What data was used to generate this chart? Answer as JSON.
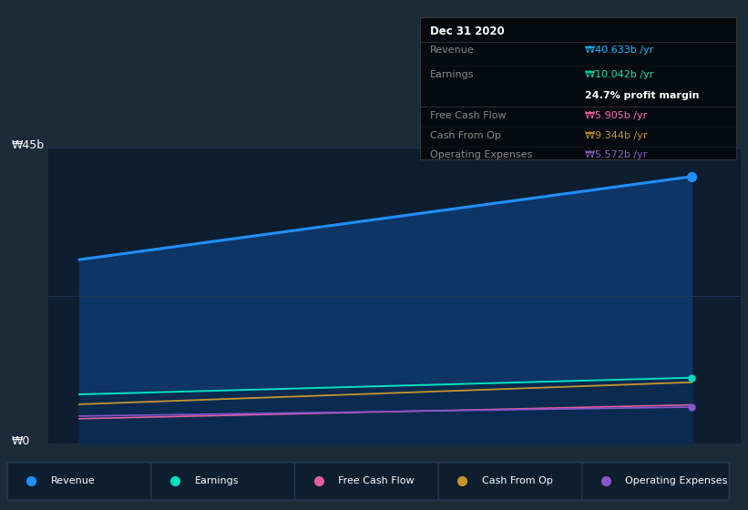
{
  "background_color": "#1c2b3a",
  "chart_bg_color": "#0d1e30",
  "y_label_top": "₩45b",
  "y_label_bottom": "₩0",
  "tooltip": {
    "date": "Dec 31 2020",
    "revenue_label": "Revenue",
    "revenue_val": "₩40.633b /yr",
    "earnings_label": "Earnings",
    "earnings_val": "₩10.042b /yr",
    "profit_margin_val": "24.7% profit margin",
    "fcf_label": "Free Cash Flow",
    "fcf_val": "₩5.905b /yr",
    "cash_op_label": "Cash From Op",
    "cash_op_val": "₩9.344b /yr",
    "op_exp_label": "Operating Expenses",
    "op_exp_val": "₩5.572b /yr"
  },
  "tooltip_colors": {
    "revenue": "#00bfff",
    "earnings": "#00e5b0",
    "profit_margin": "#ffffff",
    "free_cash_flow": "#ff69b4",
    "cash_from_op": "#c8962c",
    "operating_expenses": "#9060c0"
  },
  "revenue": [
    28.0,
    40.633
  ],
  "earnings": [
    7.5,
    10.042
  ],
  "fcf": [
    3.8,
    5.905
  ],
  "cash_op": [
    6.0,
    9.344
  ],
  "op_exp": [
    4.2,
    5.572
  ],
  "x": [
    0,
    1
  ],
  "y_max": 45,
  "y_min": 0,
  "line_revenue": "#2090ff",
  "line_earnings": "#00e0c0",
  "line_fcf": "#e060a0",
  "line_cash_op": "#c8962c",
  "line_op_exp": "#8855cc",
  "legend": [
    {
      "label": "Revenue",
      "color": "#2090ff"
    },
    {
      "label": "Earnings",
      "color": "#00e0c0"
    },
    {
      "label": "Free Cash Flow",
      "color": "#e060a0"
    },
    {
      "label": "Cash From Op",
      "color": "#c8962c"
    },
    {
      "label": "Operating Expenses",
      "color": "#8855cc"
    }
  ]
}
